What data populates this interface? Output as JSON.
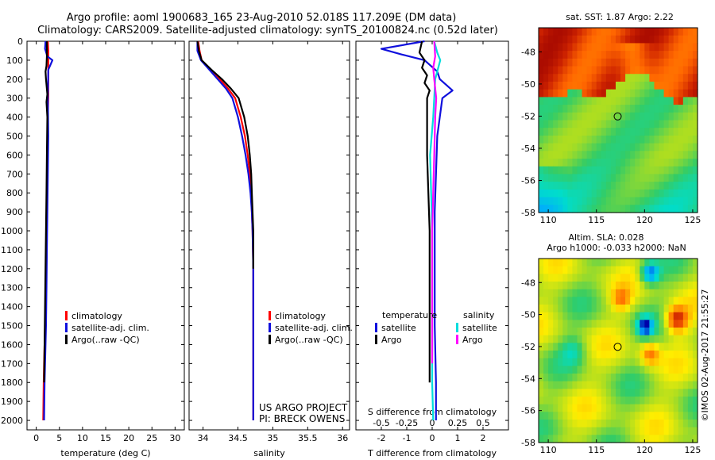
{
  "figure": {
    "title_line1": "Argo profile: aoml 1900683_165 23-Aug-2010 52.018S 117.209E (DM data)",
    "title_line2": "Climatology: CARS2009. Satellite-adjusted climatology: synTS_20100824.nc (0.52d later)",
    "credit": "US ARGO PROJECT",
    "pi": "PI: BRECK OWENS",
    "watermark": "©IMOS 02-Aug-2017 21:55:27"
  },
  "colors": {
    "climatology": "#ff0000",
    "satellite": "#1010dd",
    "argo": "#000000",
    "satellite_salinity": "#00dddd",
    "argo_salinity": "#ff00ff"
  },
  "chart_data": [
    {
      "type": "line",
      "name": "temperature-profile",
      "xlabel": "temperature (deg C)",
      "xlim": [
        -2,
        32
      ],
      "ylim": [
        2050,
        0
      ],
      "xticks": [
        "0",
        "5",
        "10",
        "15",
        "20",
        "25",
        "30"
      ],
      "yticks": [
        "0",
        "100",
        "200",
        "300",
        "400",
        "500",
        "600",
        "700",
        "800",
        "900",
        "1000",
        "1100",
        "1200",
        "1300",
        "1400",
        "1500",
        "1600",
        "1700",
        "1800",
        "1900",
        "2000"
      ],
      "legend": [
        "climatology",
        "satellite-adj. clim.",
        "Argo(..raw -QC)"
      ],
      "series": [
        {
          "role": "climatology",
          "x": [
            2.5,
            2.6,
            2.6,
            2.6,
            2.6,
            2.5,
            2.4,
            2.3,
            2.2,
            2.1,
            2.0,
            1.9,
            1.8,
            1.7,
            1.6,
            1.55,
            1.5
          ],
          "y": [
            0,
            50,
            100,
            200,
            300,
            400,
            600,
            800,
            1000,
            1200,
            1400,
            1500,
            1600,
            1700,
            1800,
            1900,
            2000
          ]
        },
        {
          "role": "satellite",
          "x": [
            2.0,
            1.9,
            2.4,
            3.5,
            2.6,
            2.5,
            2.6,
            2.5,
            2.4,
            2.3,
            2.2,
            2.1,
            2.0,
            1.9,
            1.8,
            1.75,
            1.7
          ],
          "y": [
            0,
            40,
            80,
            100,
            150,
            300,
            500,
            700,
            900,
            1100,
            1300,
            1500,
            1600,
            1700,
            1800,
            1900,
            2000
          ]
        },
        {
          "role": "argo",
          "x": [
            2.3,
            2.3,
            2.2,
            2.0,
            2.1,
            2.4,
            2.2,
            2.4,
            2.3,
            2.2,
            2.1,
            2.0,
            1.9,
            1.8,
            1.7
          ],
          "y": [
            0,
            80,
            130,
            160,
            200,
            280,
            320,
            400,
            600,
            800,
            1000,
            1200,
            1400,
            1600,
            1800
          ]
        }
      ]
    },
    {
      "type": "line",
      "name": "salinity-profile",
      "xlabel": "salinity",
      "xlim": [
        33.8,
        36.1
      ],
      "ylim": [
        2050,
        0
      ],
      "xticks": [
        "34",
        "34.5",
        "35",
        "35.5",
        "36"
      ],
      "legend": [
        "climatology",
        "satellite-adj. clim.",
        "Argo(..raw -QC)"
      ],
      "series": [
        {
          "role": "climatology",
          "x": [
            33.93,
            33.95,
            33.98,
            34.1,
            34.24,
            34.36,
            34.46,
            34.54,
            34.6,
            34.64,
            34.67,
            34.69,
            34.7,
            34.71,
            34.72,
            34.72,
            34.72,
            34.72
          ],
          "y": [
            0,
            50,
            100,
            150,
            200,
            250,
            300,
            400,
            500,
            600,
            700,
            800,
            900,
            1000,
            1200,
            1500,
            1800,
            2000
          ]
        },
        {
          "role": "satellite",
          "x": [
            33.92,
            33.92,
            33.97,
            34.09,
            34.21,
            34.33,
            34.42,
            34.5,
            34.56,
            34.61,
            34.65,
            34.68,
            34.7,
            34.71,
            34.72,
            34.72,
            34.72,
            34.72
          ],
          "y": [
            0,
            50,
            100,
            150,
            200,
            250,
            300,
            400,
            500,
            600,
            700,
            800,
            900,
            1000,
            1200,
            1500,
            1800,
            2000
          ]
        },
        {
          "role": "argo",
          "x": [
            33.92,
            33.94,
            33.98,
            34.12,
            34.27,
            34.4,
            34.51,
            34.59,
            34.64,
            34.67,
            34.69,
            34.7,
            34.71,
            34.72,
            34.72
          ],
          "y": [
            0,
            50,
            100,
            150,
            200,
            250,
            300,
            400,
            500,
            600,
            700,
            800,
            900,
            1000,
            1200
          ]
        }
      ]
    },
    {
      "type": "line",
      "name": "difference-from-climatology",
      "xlabel": "T difference from climatology",
      "x2label": "S difference from climatology",
      "xlim": [
        -3,
        3
      ],
      "x2lim": [
        -0.75,
        0.75
      ],
      "ylim": [
        2050,
        0
      ],
      "xticks": [
        "-2",
        "-1",
        "0",
        "1",
        "2"
      ],
      "x2ticks": [
        "-0.5",
        "-0.25",
        "0",
        "0.25",
        "0.5"
      ],
      "legend_headers": [
        "temperature",
        "salinity"
      ],
      "legend": [
        "satellite",
        "Argo",
        "satellite",
        "Argo"
      ],
      "series": [
        {
          "role": "satellite",
          "axis": "T",
          "x": [
            -0.3,
            -2.0,
            -1.2,
            -0.3,
            0.2,
            0.3,
            0.8,
            0.4,
            0.3,
            0.2,
            0.15,
            0.1,
            0.1,
            0.1,
            0.1,
            0.15,
            0.15
          ],
          "y": [
            0,
            40,
            70,
            100,
            160,
            200,
            260,
            300,
            400,
            500,
            700,
            900,
            1100,
            1300,
            1500,
            1800,
            2000
          ]
        },
        {
          "role": "argo",
          "axis": "T",
          "x": [
            -0.4,
            -0.5,
            -0.3,
            -0.4,
            -0.2,
            -0.3,
            -0.1,
            -0.2,
            -0.2,
            -0.2,
            -0.15,
            -0.1,
            -0.1,
            -0.1,
            -0.1
          ],
          "y": [
            0,
            60,
            100,
            140,
            180,
            220,
            260,
            300,
            400,
            600,
            800,
            1000,
            1200,
            1500,
            1800
          ]
        },
        {
          "role": "satellite",
          "axis": "S",
          "x": [
            0.02,
            0.05,
            0.08,
            0.03,
            0.02,
            0.01,
            -0.02,
            -0.01,
            0.0,
            0.0,
            0.0,
            0.0,
            0.01
          ],
          "y": [
            0,
            60,
            100,
            200,
            300,
            400,
            600,
            800,
            1000,
            1200,
            1500,
            1800,
            2000
          ]
        },
        {
          "role": "argo",
          "axis": "S",
          "x": [
            0.02,
            0.03,
            0.01,
            0.02,
            0.04,
            0.03,
            0.02,
            0.01,
            0.0,
            0.0,
            0.0,
            0.0
          ],
          "y": [
            0,
            80,
            140,
            200,
            300,
            400,
            600,
            800,
            1000,
            1200,
            1500,
            1700
          ]
        }
      ]
    },
    {
      "type": "heatmap",
      "name": "sst-map",
      "title": "sat. SST: 1.87 Argo: 2.22",
      "xlim": [
        109,
        125.5
      ],
      "ylim": [
        -58,
        -46.5
      ],
      "xticks": [
        "110",
        "115",
        "120",
        "125"
      ],
      "yticks": [
        "-48",
        "-50",
        "-52",
        "-54",
        "-56",
        "-58"
      ],
      "marker": {
        "lon": 117.209,
        "lat": -52.018
      },
      "colormap": [
        "#0000aa",
        "#00aaff",
        "#00ddcc",
        "#33cc66",
        "#aadd22",
        "#ffee00",
        "#ffaa00",
        "#ff6600",
        "#cc2200",
        "#990000"
      ]
    },
    {
      "type": "heatmap",
      "name": "sla-map",
      "title": "Altim. SLA: 0.028",
      "subtitle": "Argo h1000: -0.033 h2000: NaN",
      "xlim": [
        109,
        125.5
      ],
      "ylim": [
        -58,
        -46.5
      ],
      "xticks": [
        "110",
        "115",
        "120",
        "125"
      ],
      "yticks": [
        "-48",
        "-50",
        "-52",
        "-54",
        "-56",
        "-58"
      ],
      "marker": {
        "lon": 117.209,
        "lat": -52.018
      },
      "colormap": [
        "#0000aa",
        "#00aaff",
        "#00ddcc",
        "#33cc66",
        "#aadd22",
        "#ffee00",
        "#ffaa00",
        "#ff6600",
        "#cc2200",
        "#990000"
      ]
    }
  ]
}
